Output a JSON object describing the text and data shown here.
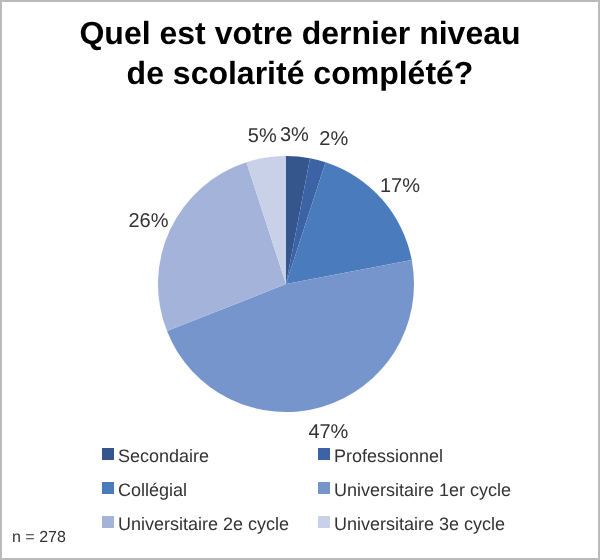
{
  "chart_data": {
    "type": "pie",
    "title": "Quel est votre dernier niveau de scolarité complété?",
    "categories": [
      "Secondaire",
      "Professionnel",
      "Collégial",
      "Universitaire 1er cycle",
      "Universitaire 2e cycle",
      "Universitaire 3e cycle"
    ],
    "values": [
      3,
      2,
      17,
      47,
      26,
      5
    ],
    "colors": [
      "#34568c",
      "#3b63a6",
      "#4a7bbd",
      "#7595cc",
      "#a3b3da",
      "#c9d1e9"
    ],
    "value_labels": [
      "3%",
      "2%",
      "17%",
      "47%",
      "26%",
      "5%"
    ],
    "legend": "bottom",
    "annotations": [
      "n = 278"
    ]
  }
}
